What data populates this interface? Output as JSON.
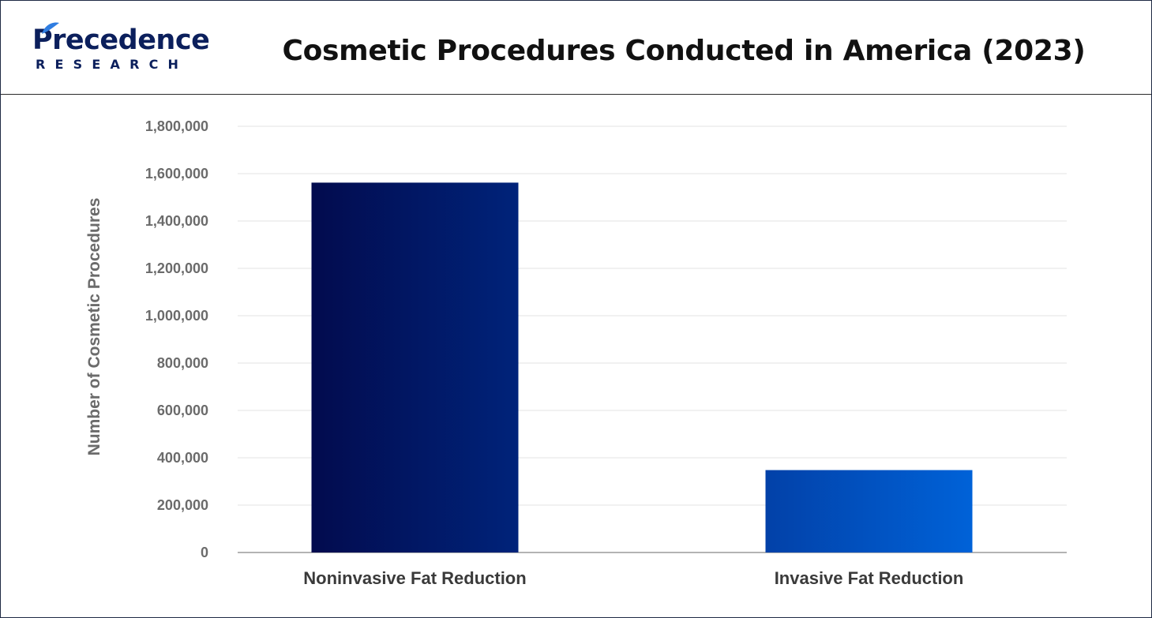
{
  "header": {
    "brand_name": "Precedence",
    "brand_sub": "RESEARCH",
    "title": "Cosmetic Procedures Conducted in America (2023)"
  },
  "colors": {
    "brand": "#0b1f5c",
    "bar_noninvasive_start": "#020b4e",
    "bar_noninvasive_end": "#00237a",
    "bar_invasive_start": "#0241a8",
    "bar_invasive_end": "#0062d8",
    "grid": "#e3e3e3",
    "axis": "#9a9a9a"
  },
  "chart_data": {
    "type": "bar",
    "title": "Cosmetic Procedures Conducted in America (2023)",
    "categories": [
      "Noninvasive Fat Reduction",
      "Invasive Fat Reduction"
    ],
    "values": [
      1562000,
      348000
    ],
    "xlabel": "",
    "ylabel": "Number of Cosmetic Procedures",
    "ylim": [
      0,
      1800000
    ],
    "yticks": [
      0,
      200000,
      400000,
      600000,
      800000,
      1000000,
      1200000,
      1400000,
      1600000,
      1800000
    ],
    "ytick_labels": [
      "0",
      "200,000",
      "400,000",
      "600,000",
      "800,000",
      "1,000,000",
      "1,200,000",
      "1,400,000",
      "1,600,000",
      "1,800,000"
    ],
    "grid": true,
    "legend": "none"
  }
}
